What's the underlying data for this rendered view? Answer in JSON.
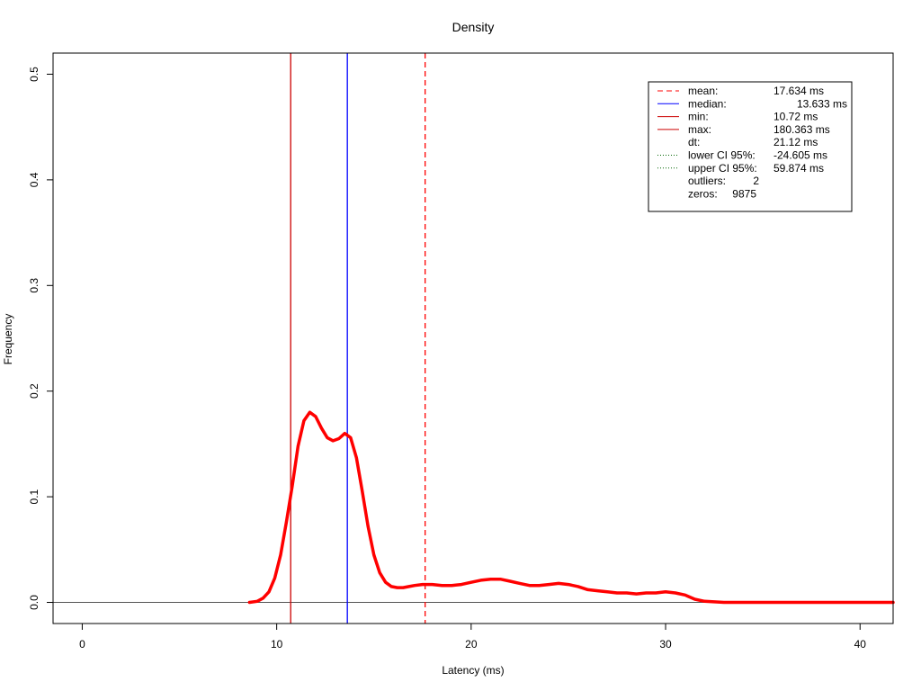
{
  "chart_data": {
    "type": "line",
    "title": "Density",
    "xlabel": "Latency (ms)",
    "ylabel": "Frequency",
    "xlim": [
      -1.5,
      41.7
    ],
    "ylim": [
      -0.02,
      0.52
    ],
    "xticks": [
      0,
      10,
      20,
      30,
      40
    ],
    "xtick_labels": [
      "0",
      "10",
      "20",
      "30",
      "40"
    ],
    "yticks": [
      0.0,
      0.1,
      0.2,
      0.3,
      0.4,
      0.5
    ],
    "ytick_labels": [
      "0.0",
      "0.1",
      "0.2",
      "0.3",
      "0.4",
      "0.5"
    ],
    "grid": false,
    "legend_position": "top-right",
    "series": [
      {
        "color": "#ff0000",
        "x": [
          8.6,
          9.0,
          9.3,
          9.6,
          9.9,
          10.2,
          10.5,
          10.8,
          11.1,
          11.4,
          11.7,
          12.0,
          12.3,
          12.6,
          12.9,
          13.2,
          13.5,
          13.8,
          14.1,
          14.4,
          14.7,
          15.0,
          15.3,
          15.6,
          15.9,
          16.2,
          16.5,
          16.8,
          17.1,
          17.5,
          18.0,
          18.5,
          19.0,
          19.5,
          20.0,
          20.5,
          21.0,
          21.5,
          22.0,
          22.5,
          23.0,
          23.5,
          24.0,
          24.5,
          25.0,
          25.5,
          26.0,
          26.5,
          27.0,
          27.5,
          28.0,
          28.5,
          29.0,
          29.5,
          30.0,
          30.5,
          31.0,
          31.5,
          32.0,
          33.0,
          35.0,
          38.0,
          41.7
        ],
        "y": [
          0.0,
          0.001,
          0.004,
          0.01,
          0.023,
          0.045,
          0.076,
          0.11,
          0.148,
          0.172,
          0.18,
          0.176,
          0.165,
          0.156,
          0.153,
          0.155,
          0.16,
          0.156,
          0.137,
          0.105,
          0.072,
          0.045,
          0.028,
          0.019,
          0.015,
          0.014,
          0.014,
          0.015,
          0.016,
          0.017,
          0.017,
          0.016,
          0.016,
          0.017,
          0.019,
          0.021,
          0.022,
          0.022,
          0.02,
          0.018,
          0.016,
          0.016,
          0.017,
          0.018,
          0.017,
          0.015,
          0.012,
          0.011,
          0.01,
          0.009,
          0.009,
          0.008,
          0.009,
          0.009,
          0.01,
          0.009,
          0.007,
          0.003,
          0.001,
          0.0,
          0.0,
          0.0,
          0.0
        ]
      }
    ],
    "hlines": [
      {
        "y": 0.0,
        "color": "#555555",
        "style": "solid"
      }
    ],
    "vlines": [
      {
        "label": "mean",
        "x": 17.634,
        "color": "#ff0000",
        "style": "dashed"
      },
      {
        "label": "median",
        "x": 13.633,
        "color": "#0000ff",
        "style": "solid"
      },
      {
        "label": "min",
        "x": 10.72,
        "color": "#cc0000",
        "style": "solid"
      }
    ],
    "legend": [
      {
        "label": "mean:",
        "value": "17.634 ms",
        "line_color": "#ff0000",
        "line_style": "dashed"
      },
      {
        "label": "median:",
        "value": "13.633 ms",
        "line_color": "#0000ff",
        "line_style": "solid",
        "indent": true
      },
      {
        "label": "min:",
        "value": "10.72 ms",
        "line_color": "#cc0000",
        "line_style": "solid"
      },
      {
        "label": "max:",
        "value": "180.363 ms",
        "line_color": "#cc0000",
        "line_style": "solid"
      },
      {
        "label": "dt:",
        "value": "21.12 ms",
        "line_color": null,
        "line_style": null
      },
      {
        "label": "lower CI 95%:",
        "value": "-24.605 ms",
        "line_color": "#006400",
        "line_style": "dotted"
      },
      {
        "label": "upper CI 95%:",
        "value": "59.874 ms",
        "line_color": "#006400",
        "line_style": "dotted"
      },
      {
        "label": "outliers:",
        "value": "2",
        "line_color": null,
        "line_style": null,
        "inline": true
      },
      {
        "label": "zeros:",
        "value": "9875",
        "line_color": null,
        "line_style": null,
        "inline": true
      }
    ]
  }
}
